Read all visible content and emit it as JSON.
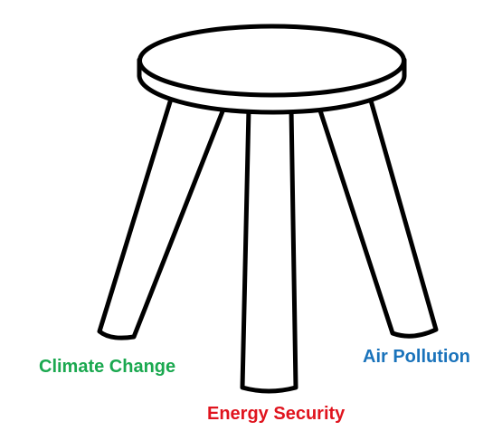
{
  "diagram": {
    "labels": {
      "left": "Climate Change",
      "center": "Energy Security",
      "right": "Air Pollution"
    },
    "colors": {
      "left": "#1aa84f",
      "center": "#e0141e",
      "right": "#1a73bb",
      "outline": "#000000"
    }
  }
}
